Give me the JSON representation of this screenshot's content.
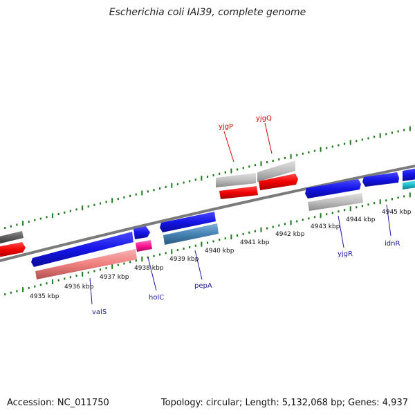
{
  "title": "Escherichia coli IAI39, complete genome",
  "footer": {
    "accession": "Accession: NC_011750",
    "summary": "Topology: circular; Length: 5,132,068 bp; Genes: 4,937"
  },
  "colors": {
    "tick": "#1a7a1a",
    "backbone": "#7a7a7a",
    "gene_blue": "#1414e6",
    "gene_red": "#f00000",
    "gene_gray": "#bdbdbd",
    "gene_dark_gray": "#5a5a5a",
    "gene_pink": "#f08080",
    "gene_magenta": "#ff1493",
    "gene_steel": "#4682b4",
    "gene_cyan": "#20c0d0",
    "label_red": "#d40000",
    "label_blue": "#1a1a9c"
  },
  "kbp_labels": [
    "4935 kbp",
    "4936 kbp",
    "4937 kbp",
    "4938 kbp",
    "4939 kbp",
    "4940 kbp",
    "4941 kbp",
    "4942 kbp",
    "4943 kbp",
    "4944 kbp",
    "4945 kbp"
  ],
  "gene_labels": [
    {
      "name": "yjgP",
      "color": "red"
    },
    {
      "name": "yjgQ",
      "color": "red"
    },
    {
      "name": "valS",
      "color": "blue"
    },
    {
      "name": "holC",
      "color": "blue"
    },
    {
      "name": "pepA",
      "color": "blue"
    },
    {
      "name": "yjgR",
      "color": "blue"
    },
    {
      "name": "idnR",
      "color": "blue"
    }
  ]
}
